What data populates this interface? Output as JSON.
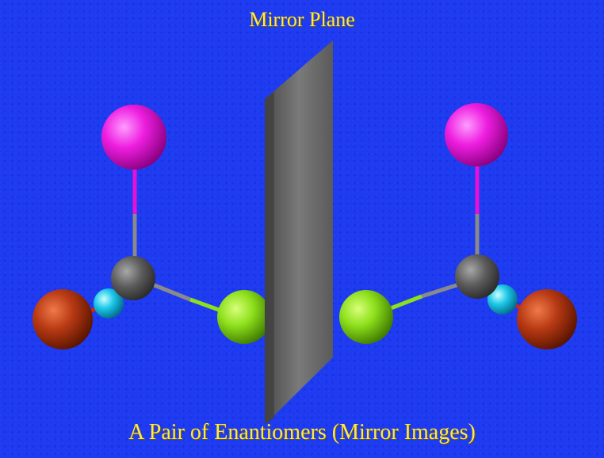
{
  "title": "Mirror Plane",
  "caption": "A Pair of Enantiomers (Mirror Images)",
  "colors": {
    "background": "#1f3bf0",
    "text": "#ffe94a",
    "mirror": "#6a6a6a",
    "carbon": "#5c5c5c",
    "magenta_atom": "#e80fd8",
    "green_atom": "#8ee01c",
    "orange_atom": "#b93a14",
    "cyan_atom": "#1ec8e8"
  },
  "molecules": [
    {
      "name": "left-enantiomer",
      "atoms": [
        "carbon",
        "magenta",
        "green",
        "orange",
        "cyan"
      ]
    },
    {
      "name": "right-enantiomer",
      "atoms": [
        "carbon",
        "magenta",
        "green",
        "orange",
        "cyan"
      ]
    }
  ]
}
